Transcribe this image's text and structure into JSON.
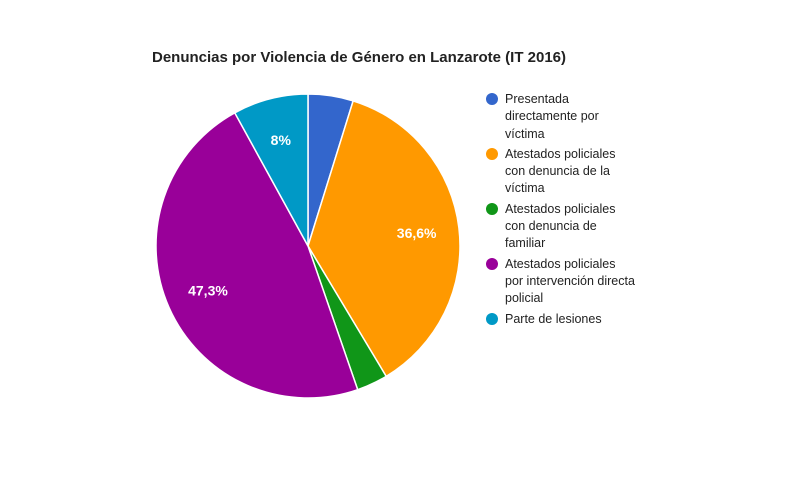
{
  "chart_data": {
    "type": "pie",
    "title": "Denuncias por Violencia de Género en Lanzarote (IT 2016)",
    "legend_position": "right",
    "slices": [
      {
        "label": "Presentada directamente por víctima",
        "lines": [
          "Presentada",
          "directamente por",
          "víctima"
        ],
        "value": 4.8,
        "color": "#3366cc",
        "data_label": ""
      },
      {
        "label": "Atestados policiales con denuncia de la víctima",
        "lines": [
          "Atestados policiales",
          "con denuncia de la",
          "víctima"
        ],
        "value": 36.6,
        "color": "#ff9900",
        "data_label": "36,6%"
      },
      {
        "label": "Atestados policiales con denuncia de familiar",
        "lines": [
          "Atestados policiales",
          "con denuncia de",
          "familiar"
        ],
        "value": 3.3,
        "color": "#109618",
        "data_label": ""
      },
      {
        "label": "Atestados policiales por intervención directa policial",
        "lines": [
          "Atestados policiales",
          "por intervención directa",
          "policial"
        ],
        "value": 47.3,
        "color": "#990099",
        "data_label": "47,3%"
      },
      {
        "label": "Parte de lesiones",
        "lines": [
          "Parte de lesiones"
        ],
        "value": 8.0,
        "color": "#0099c6",
        "data_label": "8%"
      }
    ]
  }
}
